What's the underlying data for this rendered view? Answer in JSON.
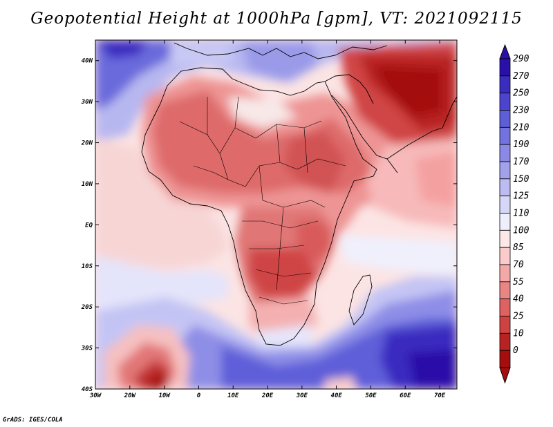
{
  "title": "Geopotential Height at 1000hPa [gpm], VT: 2021092115",
  "footer": "GrADS: IGES/COLA",
  "map": {
    "lon_labels": [
      "30W",
      "20W",
      "10W",
      "0",
      "10E",
      "20E",
      "30E",
      "40E",
      "50E",
      "60E",
      "70E"
    ],
    "lat_labels": [
      "40N",
      "30N",
      "20N",
      "10N",
      "EQ",
      "10S",
      "20S",
      "30S",
      "40S"
    ],
    "lon_range": [
      -30,
      75
    ],
    "lat_range": [
      -40,
      45
    ]
  },
  "colorbar": {
    "labels": [
      "290",
      "270",
      "250",
      "230",
      "210",
      "190",
      "170",
      "150",
      "125",
      "110",
      "100",
      "85",
      "70",
      "55",
      "40",
      "25",
      "10",
      "0"
    ],
    "colors": [
      "#2a10a8",
      "#3a2cc0",
      "#4c44cf",
      "#5e5ed9",
      "#7373df",
      "#8a8ae6",
      "#a2a2ec",
      "#bcbcf2",
      "#d6d6f8",
      "#eeeefc",
      "#fde8e8",
      "#fbcaca",
      "#f4a8a8",
      "#ea8585",
      "#de6262",
      "#cf4242",
      "#b82222",
      "#a40e0e"
    ]
  }
}
